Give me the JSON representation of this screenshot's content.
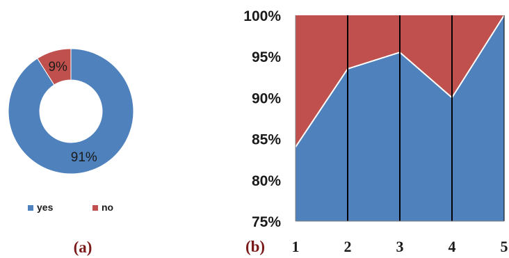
{
  "chart_data": [
    {
      "type": "pie",
      "variant": "donut",
      "panel_label": "(a)",
      "categories": [
        "yes",
        "no"
      ],
      "values": [
        91,
        9
      ],
      "labels": [
        "91%",
        "9%"
      ],
      "colors": [
        "#4f81bd",
        "#c0504d"
      ],
      "legend": [
        "yes",
        "no"
      ],
      "legend_placement": "bottom"
    },
    {
      "type": "area",
      "stacked": "100%",
      "panel_label": "(b)",
      "x": [
        1,
        2,
        3,
        4,
        5
      ],
      "x_tick_labels": [
        "1",
        "2",
        "3",
        "4",
        "5"
      ],
      "series": [
        {
          "values": [
            84,
            93.5,
            95.5,
            90,
            100
          ],
          "color": "#4f81bd"
        },
        {
          "values": [
            16,
            6.5,
            4.5,
            10,
            0
          ],
          "color": "#c0504d"
        }
      ],
      "ylim": [
        75,
        100
      ],
      "y_ticks": [
        75,
        80,
        85,
        90,
        95,
        100
      ],
      "y_tick_labels": [
        "75%",
        "80%",
        "85%",
        "90%",
        "95%",
        "100%"
      ],
      "grid": false,
      "vertical_lines_at_x": true
    }
  ]
}
